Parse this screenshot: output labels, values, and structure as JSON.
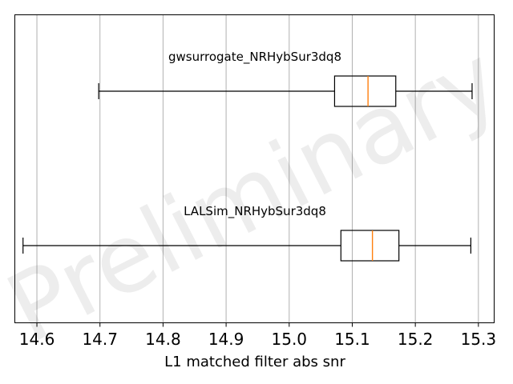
{
  "chart_data": {
    "type": "box",
    "orientation": "horizontal",
    "xlabel": "L1 matched filter abs snr",
    "xlim": [
      14.565,
      15.325
    ],
    "x_ticks": [
      14.6,
      14.7,
      14.8,
      14.9,
      15.0,
      15.1,
      15.2,
      15.3
    ],
    "x_tick_labels": [
      "14.6",
      "14.7",
      "14.8",
      "14.9",
      "15.0",
      "15.1",
      "15.2",
      "15.3"
    ],
    "grid": "vertical",
    "watermark": "Preliminary",
    "series": [
      {
        "name": "gwsurrogate_NRHybSur3dq8",
        "whisker_low": 14.698,
        "q1": 15.072,
        "median": 15.125,
        "q3": 15.169,
        "whisker_high": 15.29
      },
      {
        "name": "LALSim_NRHybSur3dq8",
        "whisker_low": 14.578,
        "q1": 15.082,
        "median": 15.132,
        "q3": 15.174,
        "whisker_high": 15.288
      }
    ],
    "colors": {
      "box": "#000000",
      "median": "#ff7f0e",
      "grid": "#b0b0b0",
      "axes": "#000000"
    }
  }
}
